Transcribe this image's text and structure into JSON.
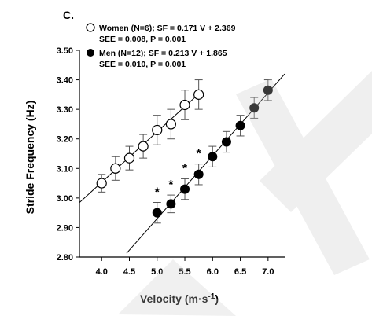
{
  "chart_data": {
    "type": "scatter",
    "panel_label": "C.",
    "xlabel_base": "Velocity (m",
    "xlabel_dot": "·",
    "xlabel_s": "s",
    "xlabel_exp": "-1",
    "xlabel_close": ")",
    "ylabel": "Stride Frequency (Hz)",
    "xlim": [
      3.6,
      7.3
    ],
    "ylim": [
      2.8,
      3.5
    ],
    "x_ticks": [
      "4.0",
      "4.5",
      "5.0",
      "5.5",
      "6.0",
      "6.5",
      "7.0"
    ],
    "y_ticks": [
      "2.80",
      "2.90",
      "3.00",
      "3.10",
      "3.20",
      "3.30",
      "3.40",
      "3.50"
    ],
    "legend": {
      "women_line1": "Women (N=6); SF = 0.171 V + 2.369",
      "women_line2": "SEE = 0.008, P = 0.001",
      "men_line1": "Men (N=12); SF = 0.213 V + 1.865",
      "men_line2": "SEE = 0.010, P = 0.001"
    },
    "series": [
      {
        "name": "Women (N=6)",
        "marker": "open-circle",
        "fit": {
          "slope": 0.171,
          "intercept": 2.369,
          "x_range": [
            3.6,
            5.8
          ]
        },
        "points": [
          {
            "x": 4.0,
            "y": 3.05,
            "err": 0.03
          },
          {
            "x": 4.25,
            "y": 3.1,
            "err": 0.04
          },
          {
            "x": 4.5,
            "y": 3.135,
            "err": 0.04
          },
          {
            "x": 4.75,
            "y": 3.175,
            "err": 0.04
          },
          {
            "x": 5.0,
            "y": 3.23,
            "err": 0.05
          },
          {
            "x": 5.25,
            "y": 3.25,
            "err": 0.05
          },
          {
            "x": 5.5,
            "y": 3.315,
            "err": 0.05
          },
          {
            "x": 5.75,
            "y": 3.35,
            "err": 0.05
          }
        ]
      },
      {
        "name": "Men (N=12)",
        "marker": "filled-circle",
        "fit": {
          "slope": 0.213,
          "intercept": 1.865,
          "x_range": [
            4.45,
            7.3
          ]
        },
        "points": [
          {
            "x": 5.0,
            "y": 2.95,
            "err": 0.035
          },
          {
            "x": 5.25,
            "y": 2.98,
            "err": 0.03
          },
          {
            "x": 5.5,
            "y": 3.03,
            "err": 0.035
          },
          {
            "x": 5.75,
            "y": 3.08,
            "err": 0.035
          },
          {
            "x": 6.0,
            "y": 3.14,
            "err": 0.035
          },
          {
            "x": 6.25,
            "y": 3.19,
            "err": 0.035
          },
          {
            "x": 6.5,
            "y": 3.245,
            "err": 0.035
          },
          {
            "x": 6.75,
            "y": 3.305,
            "err": 0.035
          },
          {
            "x": 7.0,
            "y": 3.365,
            "err": 0.035
          }
        ]
      }
    ],
    "significance": {
      "symbol": "*",
      "x": [
        5.0,
        5.25,
        5.5,
        5.75
      ]
    },
    "grid": false
  }
}
